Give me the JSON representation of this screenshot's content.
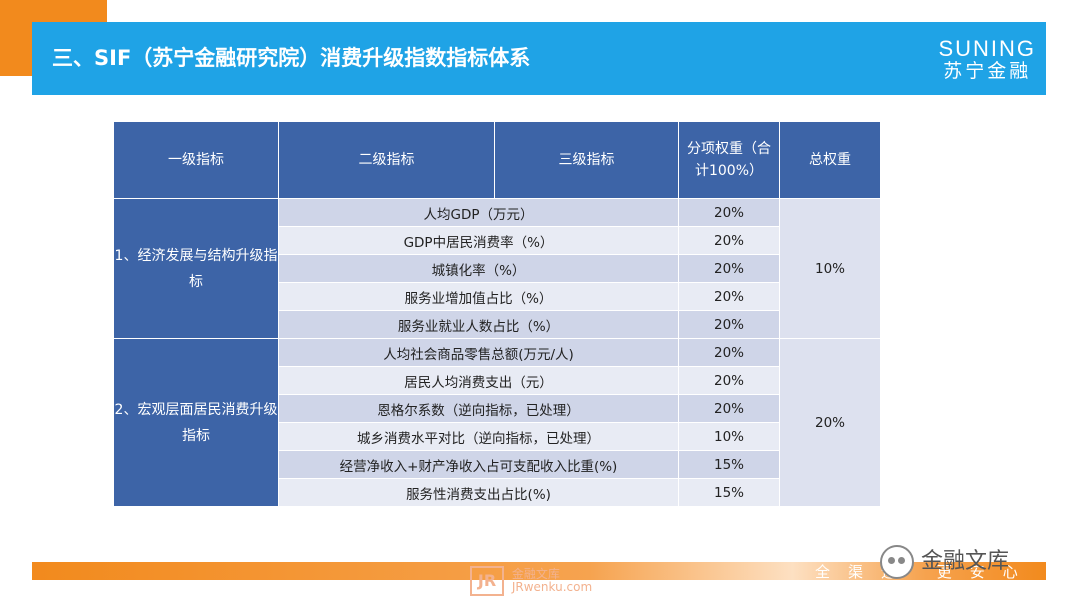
{
  "header": {
    "title": "三、SIF（苏宁金融研究院）消费升级指数指标体系",
    "brand_en": "SUNING",
    "brand_cn": "苏宁金融"
  },
  "table": {
    "headers": [
      "一级指标",
      "二级指标",
      "三级指标",
      "分项权重（合计100%）",
      "总权重"
    ],
    "groups": [
      {
        "name": "1、经济发展与结构升级指标",
        "total_weight": "10%",
        "rows": [
          {
            "indicator": "人均GDP（万元）",
            "weight": "20%"
          },
          {
            "indicator": "GDP中居民消费率（%）",
            "weight": "20%"
          },
          {
            "indicator": "城镇化率（%）",
            "weight": "20%"
          },
          {
            "indicator": "服务业增加值占比（%）",
            "weight": "20%"
          },
          {
            "indicator": "服务业就业人数占比（%）",
            "weight": "20%"
          }
        ]
      },
      {
        "name": "2、宏观层面居民消费升级指标",
        "total_weight": "20%",
        "rows": [
          {
            "indicator": "人均社会商品零售总额(万元/人)",
            "weight": "20%"
          },
          {
            "indicator": "居民人均消费支出（元）",
            "weight": "20%"
          },
          {
            "indicator": "恩格尔系数（逆向指标，已处理）",
            "weight": "20%"
          },
          {
            "indicator": "城乡消费水平对比（逆向指标，已处理）",
            "weight": "10%"
          },
          {
            "indicator": "经营净收入+财产净收入占可支配收入比重(%)",
            "weight": "15%"
          },
          {
            "indicator": "服务性消费支出占比(%)",
            "weight": "15%"
          }
        ]
      }
    ]
  },
  "footer": {
    "slogan": "全渠道 更安心",
    "watermark_logo": "JR",
    "watermark_cn": "金融文库",
    "watermark_url": "JRwenku.com",
    "wechat_label": "金融文库"
  }
}
